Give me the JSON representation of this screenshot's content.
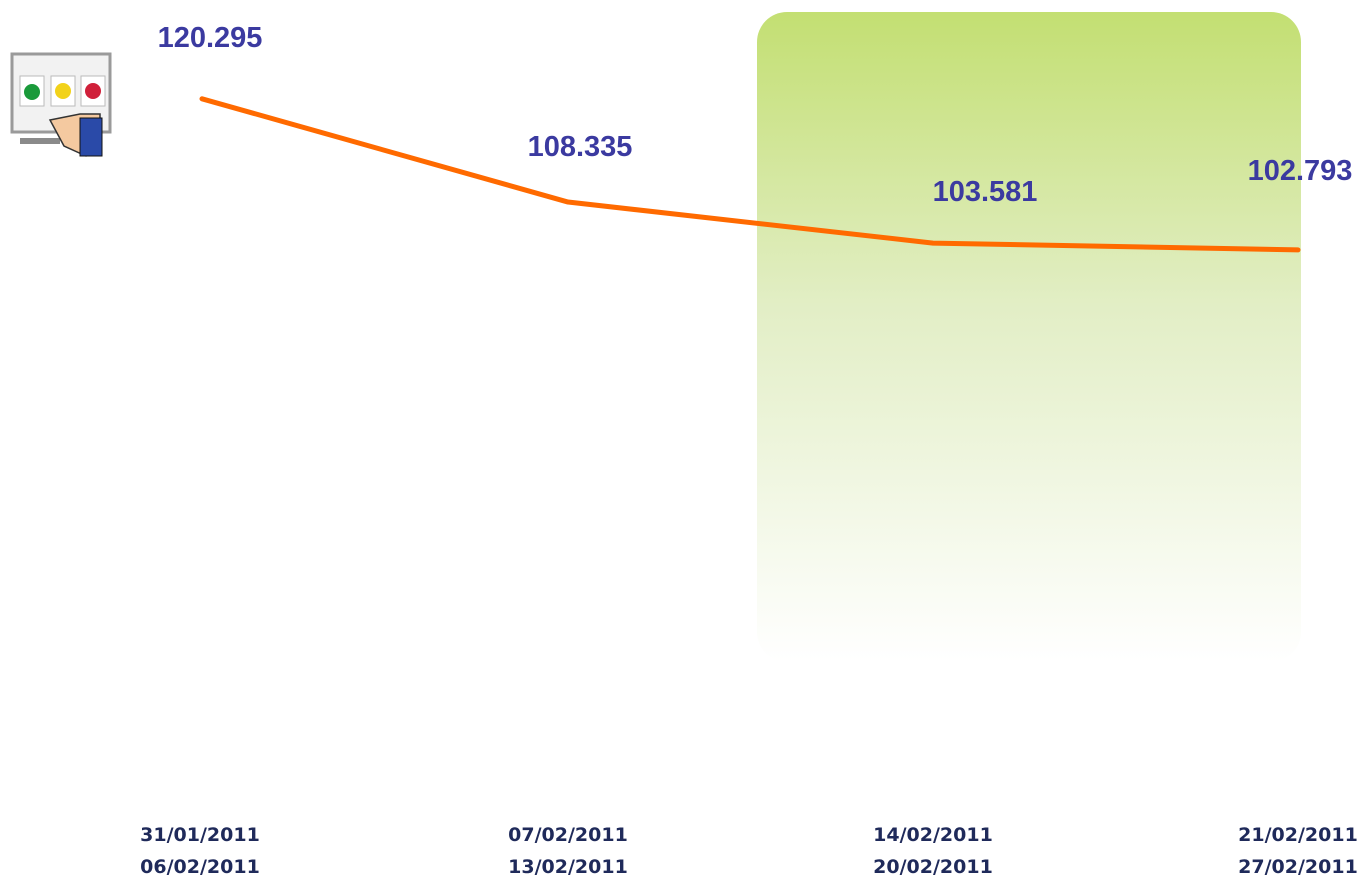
{
  "chart_data": {
    "type": "line",
    "categories": [
      [
        "31/01/2011",
        "06/02/2011"
      ],
      [
        "07/02/2011",
        "13/02/2011"
      ],
      [
        "14/02/2011",
        "20/02/2011"
      ],
      [
        "21/02/2011",
        "27/02/2011"
      ]
    ],
    "values": [
      120.295,
      108.335,
      103.581,
      102.793
    ],
    "color": "#ff6a00",
    "ylim": [
      40,
      130
    ]
  }
}
